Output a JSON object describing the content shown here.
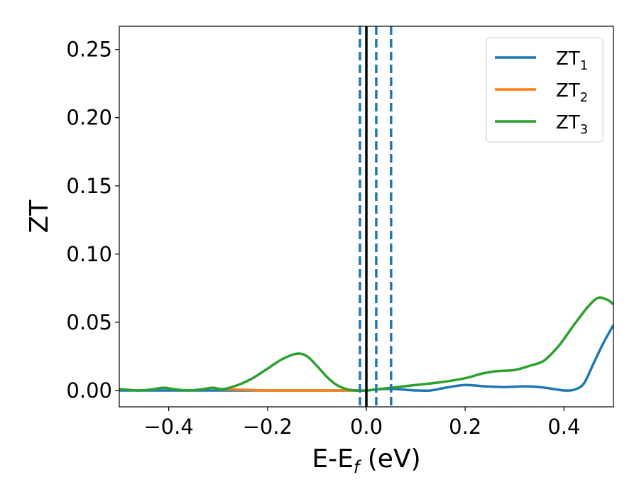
{
  "chart_data": {
    "type": "line",
    "title": "",
    "xlabel": "E-E",
    "xlabel_sub": "f",
    "xlabel_unit": " (eV)",
    "ylabel": "ZT",
    "xlim": [
      -0.5,
      0.5
    ],
    "ylim": [
      -0.012,
      0.267
    ],
    "xticks": [
      -0.4,
      -0.2,
      0.0,
      0.2,
      0.4
    ],
    "xtick_labels": [
      "−0.4",
      "−0.2",
      "0.0",
      "0.2",
      "0.4"
    ],
    "yticks": [
      0.0,
      0.05,
      0.1,
      0.15,
      0.2,
      0.25
    ],
    "ytick_labels": [
      "0.00",
      "0.05",
      "0.10",
      "0.15",
      "0.20",
      "0.25"
    ],
    "grid": false,
    "legend": "top-right",
    "series": [
      {
        "name": "ZT",
        "sub": "1",
        "color": "#1f77b4",
        "x": [
          -0.5,
          -0.45,
          -0.4,
          -0.35,
          -0.3,
          -0.25,
          -0.2,
          -0.15,
          -0.1,
          -0.05,
          0.0,
          0.03,
          0.06,
          0.1,
          0.13,
          0.16,
          0.2,
          0.24,
          0.28,
          0.32,
          0.35,
          0.38,
          0.4,
          0.42,
          0.44,
          0.46,
          0.48,
          0.5
        ],
        "y": [
          0.0,
          0.0,
          0.0,
          0.0,
          0.0,
          0.0,
          0.0,
          0.0,
          0.0,
          0.0,
          0.0,
          0.001,
          0.001,
          0.0,
          0.0,
          0.002,
          0.004,
          0.003,
          0.0025,
          0.003,
          0.0025,
          0.001,
          0.0,
          0.0005,
          0.005,
          0.02,
          0.035,
          0.048
        ]
      },
      {
        "name": "ZT",
        "sub": "2",
        "color": "#ff7f0e",
        "x": [
          -0.3,
          -0.25,
          -0.2,
          -0.15,
          -0.1,
          -0.05,
          0.0
        ],
        "y": [
          0.001,
          0.0005,
          0.0,
          0.0,
          0.0,
          0.0,
          0.0
        ]
      },
      {
        "name": "ZT",
        "sub": "3",
        "color": "#2ca02c",
        "x": [
          -0.5,
          -0.46,
          -0.43,
          -0.41,
          -0.39,
          -0.36,
          -0.33,
          -0.31,
          -0.29,
          -0.26,
          -0.23,
          -0.2,
          -0.17,
          -0.14,
          -0.12,
          -0.1,
          -0.08,
          -0.06,
          -0.04,
          -0.02,
          0.0,
          0.05,
          0.1,
          0.15,
          0.2,
          0.23,
          0.26,
          0.3,
          0.33,
          0.36,
          0.39,
          0.42,
          0.45,
          0.47,
          0.49,
          0.5
        ],
        "y": [
          0.001,
          0.0,
          0.001,
          0.002,
          0.001,
          0.0,
          0.001,
          0.002,
          0.001,
          0.004,
          0.009,
          0.016,
          0.023,
          0.027,
          0.025,
          0.018,
          0.01,
          0.004,
          0.001,
          0.0,
          0.0,
          0.002,
          0.004,
          0.006,
          0.009,
          0.012,
          0.014,
          0.015,
          0.018,
          0.022,
          0.033,
          0.048,
          0.062,
          0.068,
          0.066,
          0.063
        ]
      }
    ],
    "vlines": [
      {
        "x": -0.013,
        "style": "dashed",
        "color": "#1f77b4"
      },
      {
        "x": 0.0,
        "style": "solid",
        "color": "#000000"
      },
      {
        "x": 0.02,
        "style": "dashed",
        "color": "#1f77b4"
      },
      {
        "x": 0.05,
        "style": "dashed",
        "color": "#1f77b4"
      }
    ]
  }
}
